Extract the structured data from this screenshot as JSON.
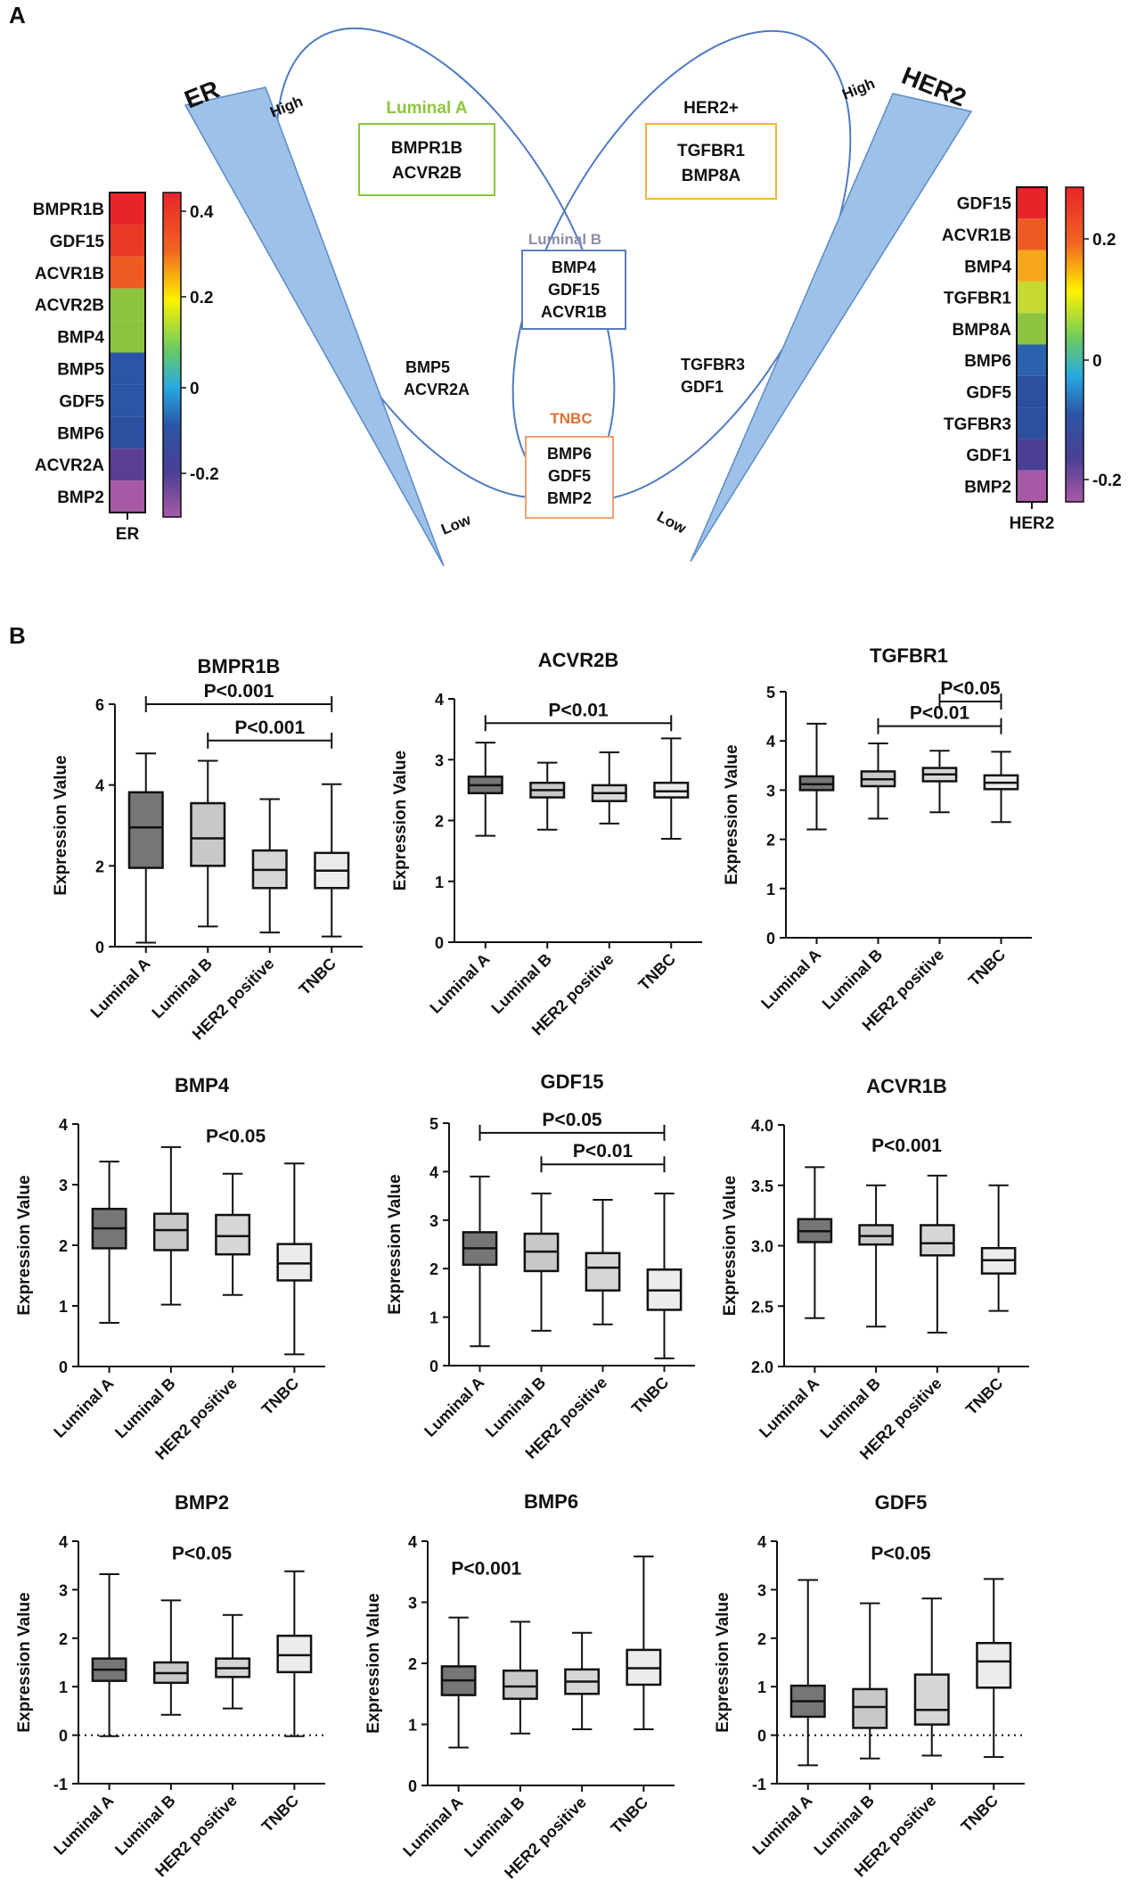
{
  "panel_labels": {
    "a": "A",
    "b": "B"
  },
  "venn": {
    "er_label": "ER",
    "her2_label": "HER2",
    "high_label": "High",
    "low_label": "Low",
    "luminal_a": {
      "title": "Luminal A",
      "title_color": "#8dc63f",
      "genes": [
        "BMPR1B",
        "ACVR2B"
      ]
    },
    "her2_pos": {
      "title": "HER2+",
      "title_color": "#111111",
      "genes": [
        "TGFBR1",
        "BMP8A"
      ]
    },
    "luminal_b": {
      "title": "Luminal B",
      "title_color": "#8a8fa8",
      "genes": [
        "BMP4",
        "GDF15",
        "ACVR1B"
      ]
    },
    "tnbc": {
      "title": "TNBC",
      "title_color": "#e07030",
      "genes": [
        "BMP6",
        "GDF5",
        "BMP2"
      ]
    },
    "left_only": [
      "BMP5",
      "ACVR2A"
    ],
    "right_only": [
      "TGFBR3",
      "GDF1"
    ]
  },
  "er_heatmap": {
    "genes": [
      "BMPR1B",
      "GDF15",
      "ACVR1B",
      "ACVR2B",
      "BMP4",
      "BMP5",
      "GDF5",
      "BMP6",
      "ACVR2A",
      "BMP2"
    ],
    "colors": [
      "#e8242a",
      "#ea3a26",
      "#ef5a22",
      "#8cc43f",
      "#8cc43f",
      "#2b55a6",
      "#2b55a6",
      "#2d4fa0",
      "#5b3e94",
      "#a859a6"
    ],
    "xlabel": "ER",
    "scale_ticks": [
      "0.4",
      "0.2",
      "0",
      "-0.2"
    ]
  },
  "her2_heatmap": {
    "genes": [
      "GDF15",
      "ACVR1B",
      "BMP4",
      "TGFBR1",
      "BMP8A",
      "BMP6",
      "GDF5",
      "TGFBR3",
      "GDF1",
      "BMP2"
    ],
    "colors": [
      "#e8242a",
      "#ef5a22",
      "#f7a71c",
      "#c6d932",
      "#8cc43f",
      "#2b62b0",
      "#2d4fa0",
      "#2d4fa0",
      "#4a3f95",
      "#a859a6"
    ],
    "xlabel": "HER2",
    "scale_ticks": [
      "0.2",
      "0",
      "-0.2"
    ]
  },
  "chart_data": [
    {
      "type": "box",
      "title": "BMPR1B",
      "ylabel": "Expression Value",
      "categories": [
        "Luminal A",
        "Luminal B",
        "HER2  positive",
        "TNBC"
      ],
      "ylim": [
        0,
        6
      ],
      "yticks": [
        "0",
        "2",
        "4",
        "6"
      ],
      "boxes": [
        {
          "min": 0.1,
          "q1": 1.95,
          "median": 2.95,
          "q3": 3.82,
          "max": 4.78
        },
        {
          "min": 0.5,
          "q1": 2.0,
          "median": 2.68,
          "q3": 3.55,
          "max": 4.6
        },
        {
          "min": 0.35,
          "q1": 1.45,
          "median": 1.9,
          "q3": 2.38,
          "max": 3.65
        },
        {
          "min": 0.25,
          "q1": 1.45,
          "median": 1.88,
          "q3": 2.32,
          "max": 4.02
        }
      ],
      "fills": [
        "#767676",
        "#c8c8c8",
        "#d6d6d6",
        "#ececec"
      ],
      "annotations": [
        {
          "text": "P<0.001",
          "from": 0,
          "to": 3,
          "y": 6.0
        },
        {
          "text": "P<0.001",
          "from": 1,
          "to": 3,
          "y": 5.1
        }
      ]
    },
    {
      "type": "box",
      "title": "ACVR2B",
      "ylabel": "Expression Value",
      "categories": [
        "Luminal A",
        "Luminal B",
        "HER2  positive",
        "TNBC"
      ],
      "ylim": [
        0,
        4
      ],
      "yticks": [
        "0",
        "1",
        "2",
        "3",
        "4"
      ],
      "boxes": [
        {
          "min": 1.75,
          "q1": 2.45,
          "median": 2.58,
          "q3": 2.72,
          "max": 3.28
        },
        {
          "min": 1.85,
          "q1": 2.38,
          "median": 2.5,
          "q3": 2.62,
          "max": 2.95
        },
        {
          "min": 1.95,
          "q1": 2.32,
          "median": 2.45,
          "q3": 2.58,
          "max": 3.12
        },
        {
          "min": 1.7,
          "q1": 2.38,
          "median": 2.48,
          "q3": 2.62,
          "max": 3.35
        }
      ],
      "fills": [
        "#767676",
        "#c8c8c8",
        "#d6d6d6",
        "#ececec"
      ],
      "annotations": [
        {
          "text": "P<0.01",
          "from": 0,
          "to": 3,
          "y": 3.6
        }
      ]
    },
    {
      "type": "box",
      "title": "TGFBR1",
      "ylabel": "Expression Value",
      "categories": [
        "Luminal A",
        "Luminal B",
        "HER2  positive",
        "TNBC"
      ],
      "ylim": [
        0,
        5
      ],
      "yticks": [
        "0",
        "1",
        "2",
        "3",
        "4",
        "5"
      ],
      "boxes": [
        {
          "min": 2.2,
          "q1": 3.0,
          "median": 3.12,
          "q3": 3.28,
          "max": 4.35
        },
        {
          "min": 2.42,
          "q1": 3.08,
          "median": 3.22,
          "q3": 3.38,
          "max": 3.95
        },
        {
          "min": 2.55,
          "q1": 3.18,
          "median": 3.32,
          "q3": 3.45,
          "max": 3.8
        },
        {
          "min": 2.35,
          "q1": 3.02,
          "median": 3.15,
          "q3": 3.3,
          "max": 3.78
        }
      ],
      "fills": [
        "#767676",
        "#c8c8c8",
        "#d6d6d6",
        "#ececec"
      ],
      "annotations": [
        {
          "text": "P<0.05",
          "from": 2,
          "to": 3,
          "y": 4.8
        },
        {
          "text": "P<0.01",
          "from": 1,
          "to": 3,
          "y": 4.3
        }
      ]
    },
    {
      "type": "box",
      "title": "BMP4",
      "ylabel": "Expression Value",
      "categories": [
        "Luminal A",
        "Luminal B",
        "HER2  positive",
        "TNBC"
      ],
      "ylim": [
        0,
        4
      ],
      "yticks": [
        "0",
        "1",
        "2",
        "3",
        "4"
      ],
      "boxes": [
        {
          "min": 0.72,
          "q1": 1.95,
          "median": 2.28,
          "q3": 2.6,
          "max": 3.38
        },
        {
          "min": 1.02,
          "q1": 1.92,
          "median": 2.25,
          "q3": 2.52,
          "max": 3.62
        },
        {
          "min": 1.18,
          "q1": 1.85,
          "median": 2.15,
          "q3": 2.5,
          "max": 3.18
        },
        {
          "min": 0.2,
          "q1": 1.42,
          "median": 1.7,
          "q3": 2.02,
          "max": 3.35
        }
      ],
      "fills": [
        "#767676",
        "#c8c8c8",
        "#d6d6d6",
        "#ececec"
      ],
      "annotations": [
        {
          "text": "P<0.05",
          "pos": 2.05,
          "y": 3.7
        }
      ]
    },
    {
      "type": "box",
      "title": "GDF15",
      "ylabel": "Expression Value",
      "categories": [
        "Luminal A",
        "Luminal B",
        "HER2  positive",
        "TNBC"
      ],
      "ylim": [
        0,
        5
      ],
      "yticks": [
        "0",
        "1",
        "2",
        "3",
        "4",
        "5"
      ],
      "boxes": [
        {
          "min": 0.4,
          "q1": 2.08,
          "median": 2.42,
          "q3": 2.75,
          "max": 3.9
        },
        {
          "min": 0.72,
          "q1": 1.95,
          "median": 2.35,
          "q3": 2.72,
          "max": 3.55
        },
        {
          "min": 0.85,
          "q1": 1.55,
          "median": 2.02,
          "q3": 2.32,
          "max": 3.42
        },
        {
          "min": 0.15,
          "q1": 1.15,
          "median": 1.55,
          "q3": 1.98,
          "max": 3.55
        }
      ],
      "fills": [
        "#767676",
        "#c8c8c8",
        "#d6d6d6",
        "#ececec"
      ],
      "annotations": [
        {
          "text": "P<0.05",
          "from": 0,
          "to": 3,
          "y": 4.8
        },
        {
          "text": "P<0.01",
          "from": 1,
          "to": 3,
          "y": 4.15
        }
      ]
    },
    {
      "type": "box",
      "title": "ACVR1B",
      "ylabel": "Expression Value",
      "categories": [
        "Luminal A",
        "Luminal B",
        "HER2  positive",
        "TNBC"
      ],
      "ylim": [
        2.0,
        4.0
      ],
      "yticks": [
        "2.0",
        "2.5",
        "3.0",
        "3.5",
        "4.0"
      ],
      "boxes": [
        {
          "min": 2.4,
          "q1": 3.03,
          "median": 3.12,
          "q3": 3.22,
          "max": 3.65
        },
        {
          "min": 2.33,
          "q1": 3.01,
          "median": 3.08,
          "q3": 3.17,
          "max": 3.5
        },
        {
          "min": 2.28,
          "q1": 2.92,
          "median": 3.02,
          "q3": 3.17,
          "max": 3.58
        },
        {
          "min": 2.46,
          "q1": 2.77,
          "median": 2.88,
          "q3": 2.98,
          "max": 3.5
        }
      ],
      "fills": [
        "#767676",
        "#c8c8c8",
        "#d6d6d6",
        "#ececec"
      ],
      "annotations": [
        {
          "text": "P<0.001",
          "pos": 1.5,
          "y": 3.78
        }
      ]
    },
    {
      "type": "box",
      "title": "BMP2",
      "ylabel": "Expression Value",
      "categories": [
        "Luminal A",
        "Luminal B",
        "HER2  positive",
        "TNBC"
      ],
      "ylim": [
        -1,
        4
      ],
      "yticks": [
        "-1",
        "0",
        "1",
        "2",
        "3",
        "4"
      ],
      "zero_line": true,
      "boxes": [
        {
          "min": -0.02,
          "q1": 1.12,
          "median": 1.35,
          "q3": 1.58,
          "max": 3.32
        },
        {
          "min": 0.42,
          "q1": 1.08,
          "median": 1.28,
          "q3": 1.5,
          "max": 2.78
        },
        {
          "min": 0.55,
          "q1": 1.2,
          "median": 1.38,
          "q3": 1.58,
          "max": 2.48
        },
        {
          "min": -0.02,
          "q1": 1.3,
          "median": 1.65,
          "q3": 2.05,
          "max": 3.38
        }
      ],
      "fills": [
        "#767676",
        "#c8c8c8",
        "#d6d6d6",
        "#ececec"
      ],
      "annotations": [
        {
          "text": "P<0.05",
          "pos": 1.5,
          "y": 3.62
        }
      ]
    },
    {
      "type": "box",
      "title": "BMP6",
      "ylabel": "Expression Value",
      "categories": [
        "Luminal A",
        "Luminal B",
        "HER2  positive",
        "TNBC"
      ],
      "ylim": [
        0,
        4
      ],
      "yticks": [
        "0",
        "1",
        "2",
        "3",
        "4"
      ],
      "boxes": [
        {
          "min": 0.62,
          "q1": 1.48,
          "median": 1.72,
          "q3": 1.95,
          "max": 2.75
        },
        {
          "min": 0.85,
          "q1": 1.42,
          "median": 1.62,
          "q3": 1.88,
          "max": 2.68
        },
        {
          "min": 0.92,
          "q1": 1.5,
          "median": 1.7,
          "q3": 1.9,
          "max": 2.5
        },
        {
          "min": 0.92,
          "q1": 1.65,
          "median": 1.92,
          "q3": 2.22,
          "max": 3.75
        }
      ],
      "fills": [
        "#767676",
        "#c8c8c8",
        "#d6d6d6",
        "#ececec"
      ],
      "annotations": [
        {
          "text": "P<0.001",
          "pos": 0.45,
          "y": 3.45
        }
      ]
    },
    {
      "type": "box",
      "title": "GDF5",
      "ylabel": "Expression Value",
      "categories": [
        "Luminal A",
        "Luminal B",
        "HER2  positive",
        "TNBC"
      ],
      "ylim": [
        -1,
        4
      ],
      "yticks": [
        "-1",
        "0",
        "1",
        "2",
        "3",
        "4"
      ],
      "zero_line": true,
      "boxes": [
        {
          "min": -0.62,
          "q1": 0.38,
          "median": 0.7,
          "q3": 1.02,
          "max": 3.2
        },
        {
          "min": -0.48,
          "q1": 0.15,
          "median": 0.58,
          "q3": 0.95,
          "max": 2.72
        },
        {
          "min": -0.42,
          "q1": 0.22,
          "median": 0.52,
          "q3": 1.25,
          "max": 2.82
        },
        {
          "min": -0.45,
          "q1": 0.98,
          "median": 1.52,
          "q3": 1.9,
          "max": 3.22
        }
      ],
      "fills": [
        "#767676",
        "#c8c8c8",
        "#d6d6d6",
        "#ececec"
      ],
      "annotations": [
        {
          "text": "P<0.05",
          "pos": 1.5,
          "y": 3.62
        }
      ]
    }
  ]
}
